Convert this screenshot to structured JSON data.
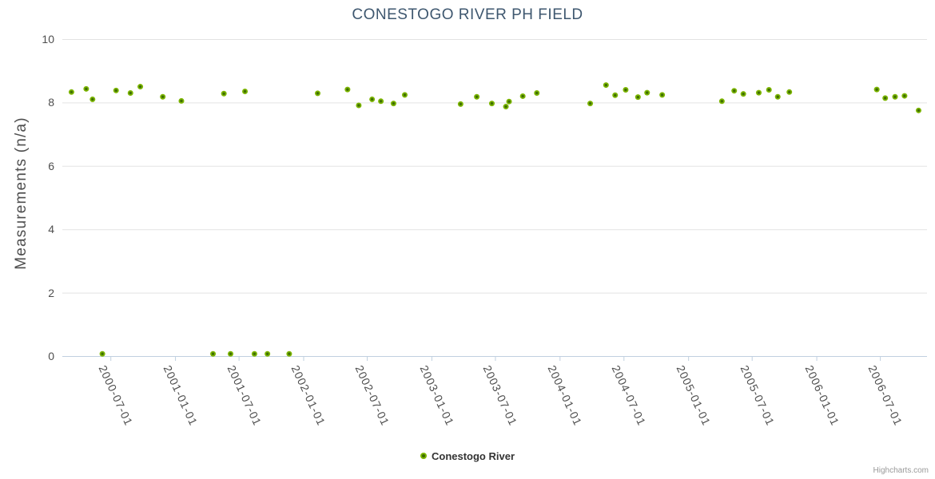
{
  "title": "CONESTOGO RIVER PH FIELD",
  "credits_label": "Highcharts.com",
  "legend": {
    "series_label": "Conestogo River"
  },
  "colors": {
    "title_text": "#3E576F",
    "axis_label_text": "#4E4E4E",
    "grid_line": "#E3E3E3",
    "axis_line": "#C0D0E0",
    "point_fill": "#7CB500",
    "point_core": "#3E6E00",
    "legend_text": "#333333",
    "credits_text": "#999999"
  },
  "chart_data": {
    "type": "scatter",
    "title": "CONESTOGO RIVER PH FIELD",
    "xlabel": "",
    "ylabel": "Measurements (n/a)",
    "ylim": [
      0,
      10
    ],
    "yticks": [
      0,
      2,
      4,
      6,
      8,
      10
    ],
    "xticks": [
      "2000-07-01",
      "2001-01-01",
      "2001-07-01",
      "2002-01-01",
      "2002-07-01",
      "2003-01-01",
      "2003-07-01",
      "2004-01-01",
      "2004-07-01",
      "2005-01-01",
      "2005-07-01",
      "2006-01-01",
      "2006-07-01"
    ],
    "x_range": [
      "2000-02-15",
      "2006-11-12"
    ],
    "grid": true,
    "legend_position": "bottom-center",
    "series": [
      {
        "name": "Conestogo River",
        "color": "#7CB500",
        "marker": "circle",
        "points": [
          [
            "2000-03-12",
            8.33
          ],
          [
            "2000-04-23",
            8.43
          ],
          [
            "2000-05-11",
            8.1
          ],
          [
            "2000-06-08",
            0.07
          ],
          [
            "2000-07-17",
            8.38
          ],
          [
            "2000-08-27",
            8.3
          ],
          [
            "2000-09-24",
            8.5
          ],
          [
            "2000-11-27",
            8.18
          ],
          [
            "2001-01-19",
            8.05
          ],
          [
            "2001-04-19",
            0.07
          ],
          [
            "2001-05-20",
            8.28
          ],
          [
            "2001-06-08",
            0.07
          ],
          [
            "2001-07-19",
            8.35
          ],
          [
            "2001-08-15",
            0.07
          ],
          [
            "2001-09-21",
            0.07
          ],
          [
            "2001-11-22",
            0.07
          ],
          [
            "2002-02-11",
            8.29
          ],
          [
            "2002-05-07",
            8.41
          ],
          [
            "2002-06-08",
            7.91
          ],
          [
            "2002-07-16",
            8.1
          ],
          [
            "2002-08-10",
            8.04
          ],
          [
            "2002-09-15",
            7.97
          ],
          [
            "2002-10-17",
            8.24
          ],
          [
            "2003-03-25",
            7.95
          ],
          [
            "2003-05-10",
            8.18
          ],
          [
            "2003-06-22",
            7.97
          ],
          [
            "2003-08-01",
            7.87
          ],
          [
            "2003-08-10",
            8.03
          ],
          [
            "2003-09-18",
            8.2
          ],
          [
            "2003-10-28",
            8.3
          ],
          [
            "2004-03-28",
            7.97
          ],
          [
            "2004-05-12",
            8.55
          ],
          [
            "2004-06-07",
            8.23
          ],
          [
            "2004-07-07",
            8.4
          ],
          [
            "2004-08-11",
            8.17
          ],
          [
            "2004-09-06",
            8.31
          ],
          [
            "2004-10-19",
            8.24
          ],
          [
            "2005-04-07",
            8.04
          ],
          [
            "2005-05-12",
            8.37
          ],
          [
            "2005-06-07",
            8.27
          ],
          [
            "2005-07-21",
            8.31
          ],
          [
            "2005-08-19",
            8.4
          ],
          [
            "2005-09-13",
            8.18
          ],
          [
            "2005-10-16",
            8.33
          ],
          [
            "2006-06-22",
            8.41
          ],
          [
            "2006-07-16",
            8.14
          ],
          [
            "2006-08-13",
            8.18
          ],
          [
            "2006-09-09",
            8.21
          ],
          [
            "2006-10-19",
            7.75
          ]
        ]
      }
    ]
  }
}
